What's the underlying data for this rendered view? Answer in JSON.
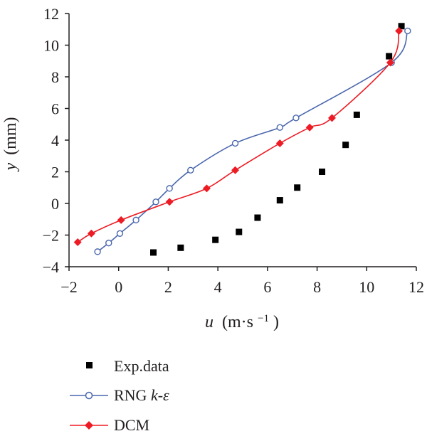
{
  "chart_data": {
    "type": "scatter",
    "xlabel_var": "u",
    "xlabel_unit": "(m·s",
    "xlabel_exp": "−1",
    "xlabel_close": ")",
    "ylabel_var": "y",
    "ylabel_unit": "(mm)",
    "xlim": [
      -2,
      12
    ],
    "ylim": [
      -4,
      12
    ],
    "xticks": [
      "−2",
      "0",
      "2",
      "4",
      "6",
      "8",
      "10",
      "12"
    ],
    "yticks": [
      "−4",
      "−2",
      "0",
      "2",
      "4",
      "6",
      "8",
      "10",
      "12"
    ],
    "grid": false,
    "legend_position": "bottom",
    "series": [
      {
        "name": "Exp.data",
        "marker": "square",
        "color": "#000000",
        "line": false,
        "points": [
          [
            1.4,
            -3.1
          ],
          [
            2.5,
            -2.8
          ],
          [
            3.9,
            -2.3
          ],
          [
            4.85,
            -1.8
          ],
          [
            5.6,
            -0.9
          ],
          [
            6.5,
            0.2
          ],
          [
            7.2,
            1.0
          ],
          [
            8.2,
            2.0
          ],
          [
            9.15,
            3.7
          ],
          [
            9.6,
            5.6
          ],
          [
            10.9,
            9.3
          ],
          [
            11.4,
            11.2
          ]
        ]
      },
      {
        "name_prefix": "RNG ",
        "name_italic": "k-ε",
        "marker": "circle-open",
        "color": "#4a67ad",
        "line": true,
        "points": [
          [
            -0.85,
            -3.05
          ],
          [
            -0.4,
            -2.5
          ],
          [
            0.05,
            -1.9
          ],
          [
            0.7,
            -1.05
          ],
          [
            1.5,
            0.1
          ],
          [
            2.05,
            0.95
          ],
          [
            2.9,
            2.1
          ],
          [
            4.7,
            3.8
          ],
          [
            6.5,
            4.8
          ],
          [
            7.15,
            5.4
          ],
          [
            11.0,
            8.9
          ],
          [
            11.65,
            10.9
          ]
        ]
      },
      {
        "name": "DCM",
        "marker": "diamond",
        "color": "#ed1c24",
        "line": true,
        "points": [
          [
            -1.65,
            -2.45
          ],
          [
            -1.1,
            -1.9
          ],
          [
            0.1,
            -1.05
          ],
          [
            2.05,
            0.1
          ],
          [
            3.55,
            0.95
          ],
          [
            4.7,
            2.1
          ],
          [
            6.5,
            3.8
          ],
          [
            7.7,
            4.8
          ],
          [
            8.6,
            5.4
          ],
          [
            10.95,
            8.9
          ],
          [
            11.3,
            10.9
          ]
        ]
      }
    ]
  }
}
